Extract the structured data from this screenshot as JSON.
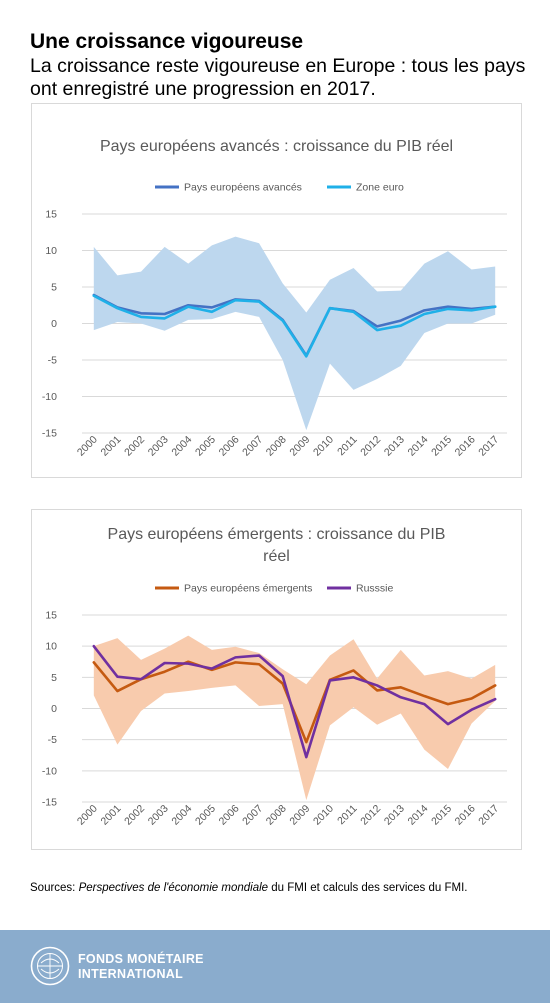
{
  "header": {
    "title": "Une croissance vigoureuse",
    "subtitle": "La croissance reste vigoureuse en Europe : tous les pays ont enregistré une progression en 2017."
  },
  "sources": {
    "prefix": "Sources: ",
    "italic": "Perspectives de l'économie mondiale",
    "suffix": " du FMI et calculs des services du FMI."
  },
  "footer": {
    "org_line1": "FONDS MONÉTAIRE",
    "org_line2": "INTERNATIONAL"
  },
  "chart_data": [
    {
      "type": "line",
      "title": "Pays européens avancés : croissance du PIB réel",
      "x": [
        "2000",
        "2001",
        "2002",
        "2003",
        "2004",
        "2005",
        "2006",
        "2007",
        "2008",
        "2009",
        "2010",
        "2011",
        "2012",
        "2013",
        "2014",
        "2015",
        "2016",
        "2017"
      ],
      "ylim": [
        -15,
        15
      ],
      "yticks": [
        15,
        10,
        5,
        0,
        -5,
        -10,
        -15
      ],
      "grid": true,
      "legend": "top",
      "band": {
        "color": "#bdd7ee",
        "upper": [
          10.5,
          6.6,
          7.1,
          10.5,
          8.2,
          10.7,
          11.9,
          11.0,
          5.5,
          1.5,
          6.0,
          7.6,
          4.4,
          4.5,
          8.2,
          9.9,
          7.4,
          7.8
        ],
        "lower": [
          -0.9,
          0.2,
          0.0,
          -1.0,
          0.5,
          0.6,
          1.6,
          0.9,
          -5.0,
          -14.6,
          -5.5,
          -9.1,
          -7.6,
          -5.8,
          -1.3,
          0.0,
          0.0,
          1.2
        ]
      },
      "series": [
        {
          "name": "Pays européens avancés",
          "color": "#4472c4",
          "values": [
            3.9,
            2.2,
            1.4,
            1.3,
            2.5,
            2.2,
            3.3,
            3.1,
            0.5,
            -4.4,
            2.1,
            1.7,
            -0.4,
            0.4,
            1.8,
            2.3,
            2.0,
            2.3
          ]
        },
        {
          "name": "Zone euro",
          "color": "#1fb0e8",
          "values": [
            3.8,
            2.1,
            0.9,
            0.7,
            2.3,
            1.6,
            3.2,
            3.0,
            0.4,
            -4.5,
            2.1,
            1.6,
            -0.9,
            -0.3,
            1.3,
            2.0,
            1.8,
            2.3
          ]
        }
      ]
    },
    {
      "type": "line",
      "title": "Pays européens émergents : croissance du PIB réel",
      "x": [
        "2000",
        "2001",
        "2002",
        "2003",
        "2004",
        "2005",
        "2006",
        "2007",
        "2008",
        "2009",
        "2010",
        "2011",
        "2012",
        "2013",
        "2014",
        "2015",
        "2016",
        "2017"
      ],
      "ylim": [
        -15,
        15
      ],
      "yticks": [
        15,
        10,
        5,
        0,
        -5,
        -10,
        -15
      ],
      "grid": true,
      "legend": "top",
      "band": {
        "color": "#f8cbad",
        "upper": [
          10.0,
          11.3,
          7.8,
          9.6,
          11.7,
          9.4,
          9.9,
          8.9,
          6.3,
          3.9,
          8.5,
          11.1,
          4.8,
          9.4,
          5.3,
          6.0,
          4.8,
          7.0
        ],
        "lower": [
          2.1,
          -5.8,
          -0.4,
          2.4,
          2.8,
          3.3,
          3.7,
          0.4,
          0.7,
          -14.7,
          -2.7,
          0.2,
          -2.6,
          -0.8,
          -6.6,
          -9.7,
          -2.4,
          1.2
        ]
      },
      "series": [
        {
          "name": "Pays européens émergents",
          "color": "#c55a11",
          "values": [
            7.4,
            2.8,
            4.7,
            5.9,
            7.5,
            6.2,
            7.4,
            7.1,
            4.0,
            -5.4,
            4.6,
            6.1,
            2.9,
            3.4,
            2.0,
            0.7,
            1.6,
            3.7
          ]
        },
        {
          "name": "Russsie",
          "color": "#7030a0",
          "values": [
            10.0,
            5.1,
            4.7,
            7.3,
            7.2,
            6.4,
            8.2,
            8.5,
            5.2,
            -7.8,
            4.5,
            5.0,
            3.7,
            1.8,
            0.7,
            -2.5,
            -0.2,
            1.5
          ]
        }
      ]
    }
  ]
}
